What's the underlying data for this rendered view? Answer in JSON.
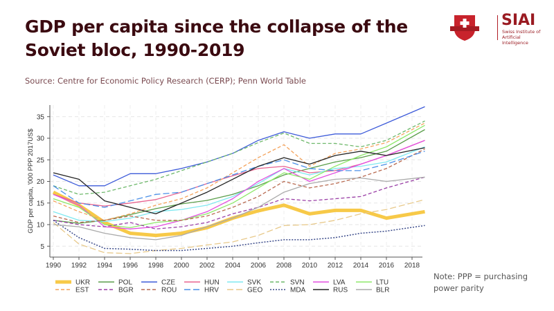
{
  "header": {
    "title": "GDP per capita since the collapse of the Soviet bloc, 1990-2019",
    "source": "Source: Centre for Economic Policy Research (CERP); Penn World Table"
  },
  "logo": {
    "name": "SIAI",
    "subtitle": "Swiss Institute of Artificial Intelligence",
    "brand_color": "#b01c24"
  },
  "note": "Note: PPP = purchasing power parity",
  "chart_data": {
    "type": "line",
    "title": "GDP per capita since the collapse of the Soviet bloc, 1990-2019",
    "xlabel": "",
    "ylabel": "GDP per capita, '000 PPP 2017US$",
    "xlim": [
      1990,
      2019
    ],
    "ylim": [
      2.5,
      38
    ],
    "x_ticks": [
      1990,
      1992,
      1994,
      1996,
      1998,
      2000,
      2002,
      2004,
      2006,
      2008,
      2010,
      2012,
      2014,
      2016,
      2018
    ],
    "y_ticks": [
      5,
      10,
      15,
      20,
      25,
      30,
      35
    ],
    "grid": true,
    "legend_position": "bottom",
    "x": [
      1990,
      1992,
      1994,
      1996,
      1998,
      2000,
      2002,
      2004,
      2006,
      2008,
      2010,
      2012,
      2014,
      2016,
      2019
    ],
    "series": [
      {
        "name": "UKR",
        "color": "#f7c948",
        "style": "thick",
        "values": [
          17.5,
          14.5,
          10.5,
          8.0,
          7.5,
          8.0,
          9.3,
          11.5,
          13.2,
          14.5,
          12.5,
          13.3,
          13.3,
          11.5,
          13.0
        ]
      },
      {
        "name": "POL",
        "color": "#5a9e4a",
        "style": "solid",
        "values": [
          11.0,
          10.3,
          11.0,
          12.3,
          13.7,
          14.8,
          15.6,
          17.0,
          19.0,
          21.5,
          23.0,
          24.5,
          25.5,
          27.0,
          32.0
        ]
      },
      {
        "name": "CZE",
        "color": "#3d5bd9",
        "style": "solid",
        "values": [
          21.5,
          19.0,
          19.0,
          21.8,
          21.8,
          23.0,
          24.5,
          26.5,
          29.5,
          31.5,
          30.0,
          31.0,
          31.0,
          33.5,
          37.3
        ]
      },
      {
        "name": "HUN",
        "color": "#e8638f",
        "style": "solid",
        "values": [
          17.0,
          15.0,
          14.3,
          15.0,
          15.8,
          17.5,
          19.5,
          21.3,
          23.0,
          23.5,
          22.0,
          22.5,
          24.0,
          26.0,
          29.5
        ]
      },
      {
        "name": "SVK",
        "color": "#7fe8f0",
        "style": "solid",
        "values": [
          13.0,
          11.0,
          10.7,
          11.5,
          13.0,
          13.5,
          14.5,
          16.5,
          19.5,
          23.0,
          21.5,
          23.0,
          23.5,
          24.5,
          28.0
        ]
      },
      {
        "name": "SVN",
        "color": "#6db86a",
        "style": "dash",
        "values": [
          19.0,
          17.0,
          17.5,
          19.0,
          20.5,
          22.5,
          24.5,
          26.5,
          29.0,
          31.2,
          28.8,
          28.8,
          28.0,
          29.5,
          34.0
        ]
      },
      {
        "name": "LVA",
        "color": "#e34fe0",
        "style": "solid",
        "values": [
          17.0,
          14.5,
          9.5,
          9.0,
          9.5,
          11.0,
          13.0,
          16.0,
          20.0,
          23.0,
          20.0,
          22.0,
          24.0,
          26.0,
          29.5
        ]
      },
      {
        "name": "LTU",
        "color": "#8ee86a",
        "style": "solid",
        "values": [
          16.0,
          14.0,
          10.0,
          9.3,
          10.5,
          11.0,
          12.5,
          15.0,
          18.5,
          22.0,
          20.5,
          23.5,
          26.0,
          28.0,
          33.0
        ]
      },
      {
        "name": "EST",
        "color": "#f4a25a",
        "style": "dash",
        "values": [
          15.5,
          13.0,
          11.0,
          12.5,
          14.5,
          16.0,
          18.5,
          22.0,
          25.5,
          28.5,
          23.5,
          26.5,
          27.5,
          29.0,
          33.5
        ]
      },
      {
        "name": "BGR",
        "color": "#9a3fa6",
        "style": "dash",
        "values": [
          11.0,
          10.0,
          9.5,
          10.5,
          9.0,
          9.5,
          10.5,
          12.5,
          14.0,
          16.0,
          15.5,
          16.0,
          16.5,
          18.5,
          21.0
        ]
      },
      {
        "name": "ROU",
        "color": "#b86a50",
        "style": "dash",
        "values": [
          12.0,
          10.5,
          11.0,
          12.0,
          11.0,
          11.0,
          12.0,
          14.0,
          16.5,
          20.0,
          18.5,
          19.5,
          21.0,
          23.0,
          27.5
        ]
      },
      {
        "name": "HRV",
        "color": "#4a8fe8",
        "style": "longdash",
        "values": [
          19.0,
          15.0,
          14.0,
          15.5,
          17.0,
          17.5,
          19.5,
          21.5,
          23.5,
          25.0,
          23.0,
          22.5,
          22.5,
          24.0,
          27.0
        ]
      },
      {
        "name": "GEO",
        "color": "#e8c98a",
        "style": "longdash",
        "values": [
          10.5,
          5.5,
          3.5,
          3.3,
          4.0,
          4.5,
          5.3,
          6.0,
          7.5,
          9.8,
          10.0,
          11.0,
          12.5,
          13.5,
          15.8
        ]
      },
      {
        "name": "MDA",
        "color": "#3a4a8a",
        "style": "dot",
        "values": [
          11.0,
          7.0,
          4.5,
          4.3,
          4.0,
          4.0,
          4.5,
          5.0,
          5.8,
          6.5,
          6.5,
          7.0,
          8.0,
          8.5,
          9.8
        ]
      },
      {
        "name": "RUS",
        "color": "#222222",
        "style": "solid",
        "values": [
          22.0,
          20.5,
          15.5,
          14.0,
          12.5,
          15.0,
          17.5,
          20.5,
          23.5,
          25.5,
          24.0,
          26.0,
          27.0,
          26.0,
          27.8
        ]
      },
      {
        "name": "BLR",
        "color": "#aaaaaa",
        "style": "solid",
        "values": [
          10.0,
          9.5,
          8.0,
          7.0,
          6.5,
          7.5,
          9.5,
          11.5,
          14.0,
          17.5,
          19.5,
          20.5,
          20.8,
          20.0,
          21.0
        ]
      }
    ]
  }
}
